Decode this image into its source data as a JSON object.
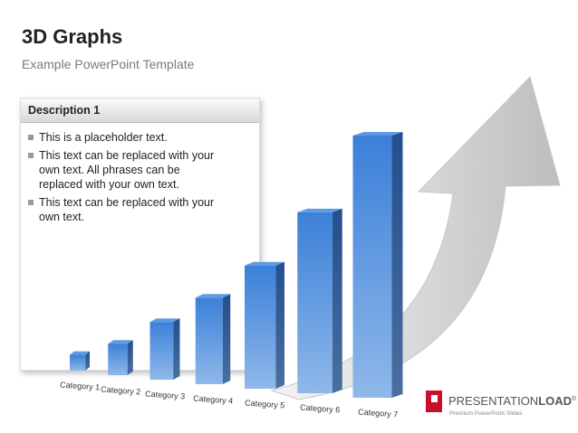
{
  "header": {
    "title": "3D Graphs",
    "subtitle": "Example PowerPoint Template"
  },
  "description": {
    "title": "Description 1",
    "bullets": [
      "This is a placeholder text.",
      "This text can be replaced with your own text. All phrases can be replaced with your own text.",
      "This text can be replaced with your own text."
    ]
  },
  "chart_data": {
    "type": "bar",
    "categories": [
      "Category 1",
      "Category 2",
      "Category 3",
      "Category 4",
      "Category 5",
      "Category 6",
      "Category 7"
    ],
    "values": [
      6,
      12,
      22,
      33,
      47,
      69,
      100
    ],
    "color": "#3b80d8",
    "ylim": [
      0,
      100
    ]
  },
  "logo": {
    "name": "PRESENTATION",
    "name_bold": "LOAD",
    "mark": "®",
    "tagline": "Premium PowerPoint Slides"
  }
}
